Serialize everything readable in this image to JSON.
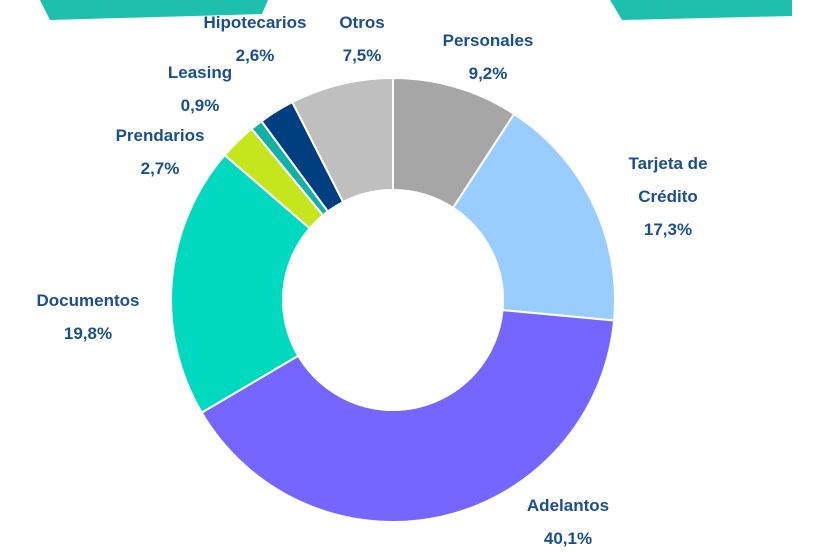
{
  "chart_data": {
    "type": "donut",
    "categories": [
      "Personales",
      "Tarjeta de Crédito",
      "Adelantos",
      "Documentos",
      "Prendarios",
      "Leasing",
      "Hipotecarios",
      "Otros"
    ],
    "values": [
      9.2,
      17.3,
      40.1,
      19.8,
      2.7,
      0.9,
      2.6,
      7.5
    ],
    "value_labels": [
      "9,2%",
      "17,3%",
      "40,1%",
      "19,8%",
      "2,7%",
      "0,9%",
      "2,6%",
      "7,5%"
    ],
    "colors": [
      "#a6a6a6",
      "#99ccff",
      "#7466ff",
      "#00d8c0",
      "#c5e61c",
      "#14b0a8",
      "#003f7f",
      "#bfbfbf"
    ]
  }
}
